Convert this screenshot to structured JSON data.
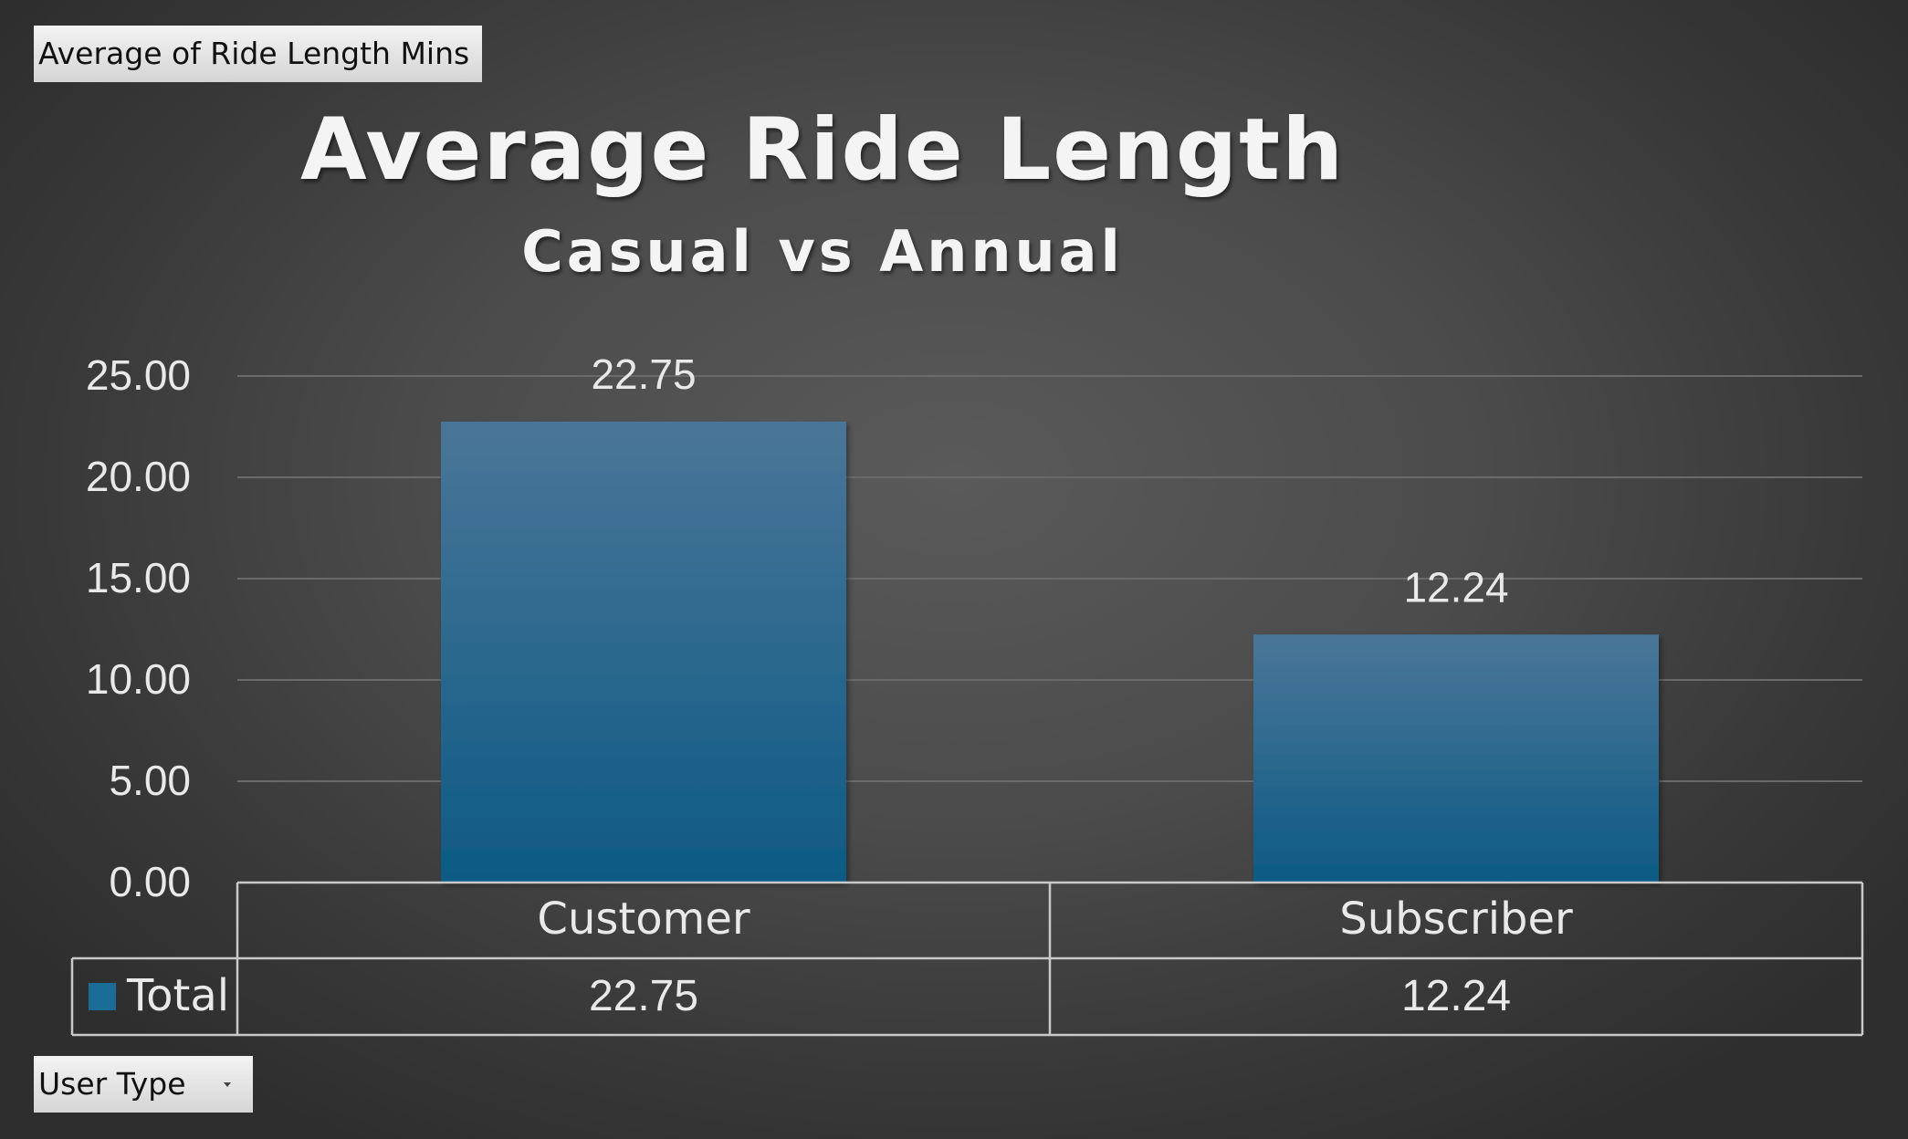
{
  "pivot_buttons": {
    "value_field": "Average of Ride Length Mins",
    "axis_field": "User Type"
  },
  "colors": {
    "bar_top": "#4a7698",
    "bar_bottom": "#0d5a84",
    "legend_swatch": "#1a6d97",
    "gridline": "#6a6a6a",
    "text": "#e9e9e9"
  },
  "chart_data": {
    "type": "bar",
    "title": "Average Ride Length",
    "subtitle": "Casual vs Annual",
    "categories": [
      "Customer",
      "Subscriber"
    ],
    "series": [
      {
        "name": "Total",
        "values": [
          22.75,
          12.24
        ]
      }
    ],
    "value_labels": [
      "22.75",
      "12.24"
    ],
    "ylim": [
      0,
      25
    ],
    "yticks": [
      "0.00",
      "5.00",
      "10.00",
      "15.00",
      "20.00",
      "25.00"
    ],
    "grid": true,
    "data_table": true,
    "legend": "data-table"
  }
}
